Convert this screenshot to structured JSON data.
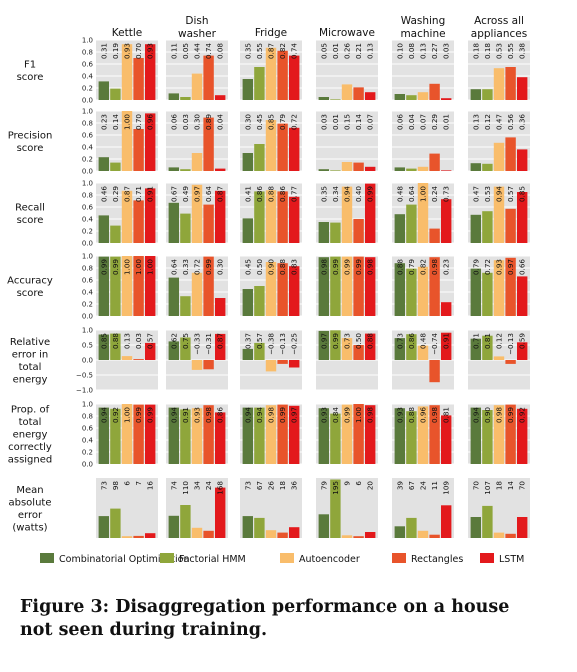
{
  "chart_data": {
    "type": "bar",
    "appliances": [
      "Kettle",
      "Dish washer",
      "Fridge",
      "Microwave",
      "Washing machine",
      "Across all appliances"
    ],
    "column_titles": [
      [
        "Kettle"
      ],
      [
        "Dish",
        "washer"
      ],
      [
        "Fridge"
      ],
      [
        "Microwave"
      ],
      [
        "Washing",
        "machine"
      ],
      [
        "Across all",
        "appliances"
      ]
    ],
    "legend": [
      {
        "name": "Combinatorial Optimisation",
        "color": "#5a7a3c"
      },
      {
        "name": "Factorial HMM",
        "color": "#8fa63b"
      },
      {
        "name": "Autoencoder",
        "color": "#f9bd6b"
      },
      {
        "name": "Rectangles",
        "color": "#e8542b"
      },
      {
        "name": "LSTM",
        "color": "#e3191c"
      }
    ],
    "legend_placement": "bottom",
    "grid": true,
    "metrics": [
      {
        "label": [
          "F1",
          "score"
        ],
        "ylim": [
          0,
          1
        ],
        "yticks": [
          "0.0",
          "0.2",
          "0.4",
          "0.6",
          "0.8",
          "1.0"
        ],
        "ytick_values": [
          0,
          0.2,
          0.4,
          0.6,
          0.8,
          1.0
        ],
        "values": [
          [
            0.31,
            0.19,
            0.93,
            0.7,
            0.93
          ],
          [
            0.11,
            0.05,
            0.44,
            0.74,
            0.08
          ],
          [
            0.35,
            0.55,
            0.87,
            0.82,
            0.74
          ],
          [
            0.05,
            0.01,
            0.26,
            0.21,
            0.13
          ],
          [
            0.1,
            0.08,
            0.13,
            0.27,
            0.03
          ],
          [
            0.18,
            0.18,
            0.53,
            0.55,
            0.38
          ]
        ],
        "labels": [
          [
            "0.31",
            "0.19",
            "0.93",
            "0.70",
            "0.93"
          ],
          [
            "0.11",
            "0.05",
            "0.44",
            "0.74",
            "0.08"
          ],
          [
            "0.35",
            "0.55",
            "0.87",
            "0.82",
            "0.74"
          ],
          [
            "0.05",
            "0.01",
            "0.26",
            "0.21",
            "0.13"
          ],
          [
            "0.10",
            "0.08",
            "0.13",
            "0.27",
            "0.03"
          ],
          [
            "0.18",
            "0.18",
            "0.53",
            "0.55",
            "0.38"
          ]
        ]
      },
      {
        "label": [
          "Precision",
          "score"
        ],
        "ylim": [
          0,
          1
        ],
        "yticks": [
          "0.0",
          "0.2",
          "0.4",
          "0.6",
          "0.8",
          "1.0"
        ],
        "ytick_values": [
          0,
          0.2,
          0.4,
          0.6,
          0.8,
          1.0
        ],
        "values": [
          [
            0.23,
            0.14,
            1.0,
            0.7,
            0.96
          ],
          [
            0.06,
            0.03,
            0.3,
            0.89,
            0.04
          ],
          [
            0.3,
            0.45,
            0.85,
            0.79,
            0.72
          ],
          [
            0.03,
            0.01,
            0.15,
            0.14,
            0.07
          ],
          [
            0.06,
            0.04,
            0.07,
            0.29,
            0.01
          ],
          [
            0.13,
            0.12,
            0.47,
            0.56,
            0.36
          ]
        ],
        "labels": [
          [
            "0.23",
            "0.14",
            "1.00",
            "0.70",
            "0.96"
          ],
          [
            "0.06",
            "0.03",
            "0.30",
            "0.89",
            "0.04"
          ],
          [
            "0.30",
            "0.45",
            "0.85",
            "0.79",
            "0.72"
          ],
          [
            "0.03",
            "0.01",
            "0.15",
            "0.14",
            "0.07"
          ],
          [
            "0.06",
            "0.04",
            "0.07",
            "0.29",
            "0.01"
          ],
          [
            "0.13",
            "0.12",
            "0.47",
            "0.56",
            "0.36"
          ]
        ]
      },
      {
        "label": [
          "Recall",
          "score"
        ],
        "ylim": [
          0,
          1
        ],
        "yticks": [
          "0.0",
          "0.2",
          "0.4",
          "0.6",
          "0.8",
          "1.0"
        ],
        "ytick_values": [
          0,
          0.2,
          0.4,
          0.6,
          0.8,
          1.0
        ],
        "values": [
          [
            0.46,
            0.29,
            0.87,
            0.71,
            0.91
          ],
          [
            0.67,
            0.49,
            0.97,
            0.64,
            0.87
          ],
          [
            0.41,
            0.86,
            0.88,
            0.86,
            0.77
          ],
          [
            0.35,
            0.34,
            0.94,
            0.4,
            0.99
          ],
          [
            0.48,
            0.64,
            1.0,
            0.24,
            0.73
          ],
          [
            0.47,
            0.53,
            0.94,
            0.57,
            0.85
          ]
        ],
        "labels": [
          [
            "0.46",
            "0.29",
            "0.87",
            "0.71",
            "0.91"
          ],
          [
            "0.67",
            "0.49",
            "0.97",
            "0.64",
            "0.87"
          ],
          [
            "0.41",
            "0.86",
            "0.88",
            "0.86",
            "0.77"
          ],
          [
            "0.35",
            "0.34",
            "0.94",
            "0.40",
            "0.99"
          ],
          [
            "0.48",
            "0.64",
            "1.00",
            "0.24",
            "0.73"
          ],
          [
            "0.47",
            "0.53",
            "0.94",
            "0.57",
            "0.85"
          ]
        ]
      },
      {
        "label": [
          "Accuracy",
          "score"
        ],
        "ylim": [
          0,
          1
        ],
        "yticks": [
          "0.0",
          "0.2",
          "0.4",
          "0.6",
          "0.8",
          "1.0"
        ],
        "ytick_values": [
          0,
          0.2,
          0.4,
          0.6,
          0.8,
          1.0
        ],
        "values": [
          [
            0.99,
            0.99,
            1.0,
            1.0,
            1.0
          ],
          [
            0.64,
            0.33,
            0.72,
            0.99,
            0.3
          ],
          [
            0.45,
            0.5,
            0.9,
            0.88,
            0.83
          ],
          [
            0.98,
            0.99,
            0.99,
            0.99,
            0.98
          ],
          [
            0.88,
            0.79,
            0.82,
            0.98,
            0.23
          ],
          [
            0.79,
            0.72,
            0.93,
            0.97,
            0.66
          ]
        ],
        "labels": [
          [
            "0.99",
            "0.99",
            "1.00",
            "1.00",
            "1.00"
          ],
          [
            "0.64",
            "0.33",
            "0.72",
            "0.99",
            "0.30"
          ],
          [
            "0.45",
            "0.50",
            "0.90",
            "0.88",
            "0.83"
          ],
          [
            "0.98",
            "0.99",
            "0.99",
            "0.99",
            "0.98"
          ],
          [
            "0.88",
            "0.79",
            "0.82",
            "0.98",
            "0.23"
          ],
          [
            "0.79",
            "0.72",
            "0.93",
            "0.97",
            "0.66"
          ]
        ]
      },
      {
        "label": [
          "Relative",
          "error in",
          "total",
          "energy"
        ],
        "ylim": [
          -1,
          1
        ],
        "yticks": [
          "−1.0",
          "−0.5",
          "0.0",
          "0.5",
          "1.0"
        ],
        "ytick_values": [
          -1,
          -0.5,
          0,
          0.5,
          1.0
        ],
        "values": [
          [
            0.85,
            0.88,
            0.13,
            0.03,
            0.57
          ],
          [
            0.62,
            0.75,
            -0.33,
            -0.31,
            0.87
          ],
          [
            0.37,
            0.57,
            -0.38,
            -0.13,
            -0.25
          ],
          [
            0.97,
            0.99,
            0.73,
            0.5,
            0.88
          ],
          [
            0.73,
            0.86,
            0.48,
            -0.74,
            0.91
          ],
          [
            0.71,
            0.81,
            0.12,
            -0.13,
            0.59
          ]
        ],
        "labels": [
          [
            "0.85",
            "0.88",
            "0.13",
            "0.03",
            "0.57"
          ],
          [
            "0.62",
            "0.75",
            "−0.33",
            "−0.31",
            "0.87"
          ],
          [
            "0.37",
            "0.57",
            "−0.38",
            "−0.13",
            "−0.25"
          ],
          [
            "0.97",
            "0.99",
            "0.73",
            "0.50",
            "0.88"
          ],
          [
            "0.73",
            "0.86",
            "0.48",
            "−0.74",
            "0.91"
          ],
          [
            "0.71",
            "0.81",
            "0.12",
            "−0.13",
            "0.59"
          ]
        ]
      },
      {
        "label": [
          "Prop. of",
          "total",
          "energy",
          "correctly",
          "assigned"
        ],
        "ylim": [
          0,
          1
        ],
        "yticks": [
          "0.0",
          "0.2",
          "0.4",
          "0.6",
          "0.8",
          "1.0"
        ],
        "ytick_values": [
          0,
          0.2,
          0.4,
          0.6,
          0.8,
          1.0
        ],
        "values": [
          [
            0.94,
            0.92,
            1.0,
            0.99,
            0.99
          ],
          [
            0.94,
            0.91,
            0.93,
            0.98,
            0.86
          ],
          [
            0.94,
            0.94,
            0.98,
            0.99,
            0.97
          ],
          [
            0.93,
            0.84,
            0.99,
            1.0,
            0.98
          ],
          [
            0.93,
            0.88,
            0.96,
            0.98,
            0.81
          ],
          [
            0.94,
            0.9,
            0.98,
            0.99,
            0.92
          ]
        ],
        "labels": [
          [
            "0.94",
            "0.92",
            "1.00",
            "0.99",
            "0.99"
          ],
          [
            "0.94",
            "0.91",
            "0.93",
            "0.98",
            "0.86"
          ],
          [
            "0.94",
            "0.94",
            "0.98",
            "0.99",
            "0.97"
          ],
          [
            "0.93",
            "0.84",
            "0.99",
            "1.00",
            "0.98"
          ],
          [
            "0.93",
            "0.88",
            "0.96",
            "0.98",
            "0.81"
          ],
          [
            "0.94",
            "0.90",
            "0.98",
            "0.99",
            "0.92"
          ]
        ]
      },
      {
        "label": [
          "Mean",
          "absolute",
          "error",
          "(watts)"
        ],
        "ylim": [
          0,
          200
        ],
        "yticks": [],
        "ytick_values": [],
        "values": [
          [
            73,
            98,
            6,
            7,
            16
          ],
          [
            74,
            110,
            34,
            24,
            168
          ],
          [
            73,
            67,
            26,
            18,
            36
          ],
          [
            79,
            195,
            9,
            6,
            20
          ],
          [
            39,
            67,
            24,
            11,
            109
          ],
          [
            70,
            107,
            18,
            14,
            70
          ]
        ],
        "labels": [
          [
            "73",
            "98",
            "6",
            "7",
            "16"
          ],
          [
            "74",
            "110",
            "34",
            "24",
            "168"
          ],
          [
            "73",
            "67",
            "26",
            "18",
            "36"
          ],
          [
            "79",
            "195",
            "9",
            "6",
            "20"
          ],
          [
            "39",
            "67",
            "24",
            "11",
            "109"
          ],
          [
            "70",
            "107",
            "18",
            "14",
            "70"
          ]
        ]
      }
    ]
  },
  "caption": {
    "line1": "Figure 3:  Disaggregation performance on a house",
    "line2": "not seen during training."
  }
}
